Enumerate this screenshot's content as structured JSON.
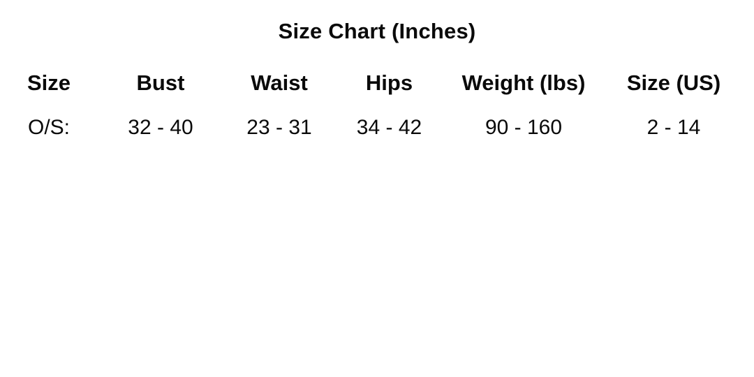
{
  "title": "Size Chart (Inches)",
  "colors": {
    "text": "#0a0a0a",
    "background": "#ffffff"
  },
  "chart_data": {
    "type": "table",
    "title": "Size Chart (Inches)",
    "columns": [
      "Size",
      "Bust",
      "Waist",
      "Hips",
      "Weight (lbs)",
      "Size (US)"
    ],
    "rows": [
      [
        "O/S:",
        "32 - 40",
        "23 - 31",
        "34 - 42",
        "90 - 160",
        "2 - 14"
      ]
    ]
  }
}
